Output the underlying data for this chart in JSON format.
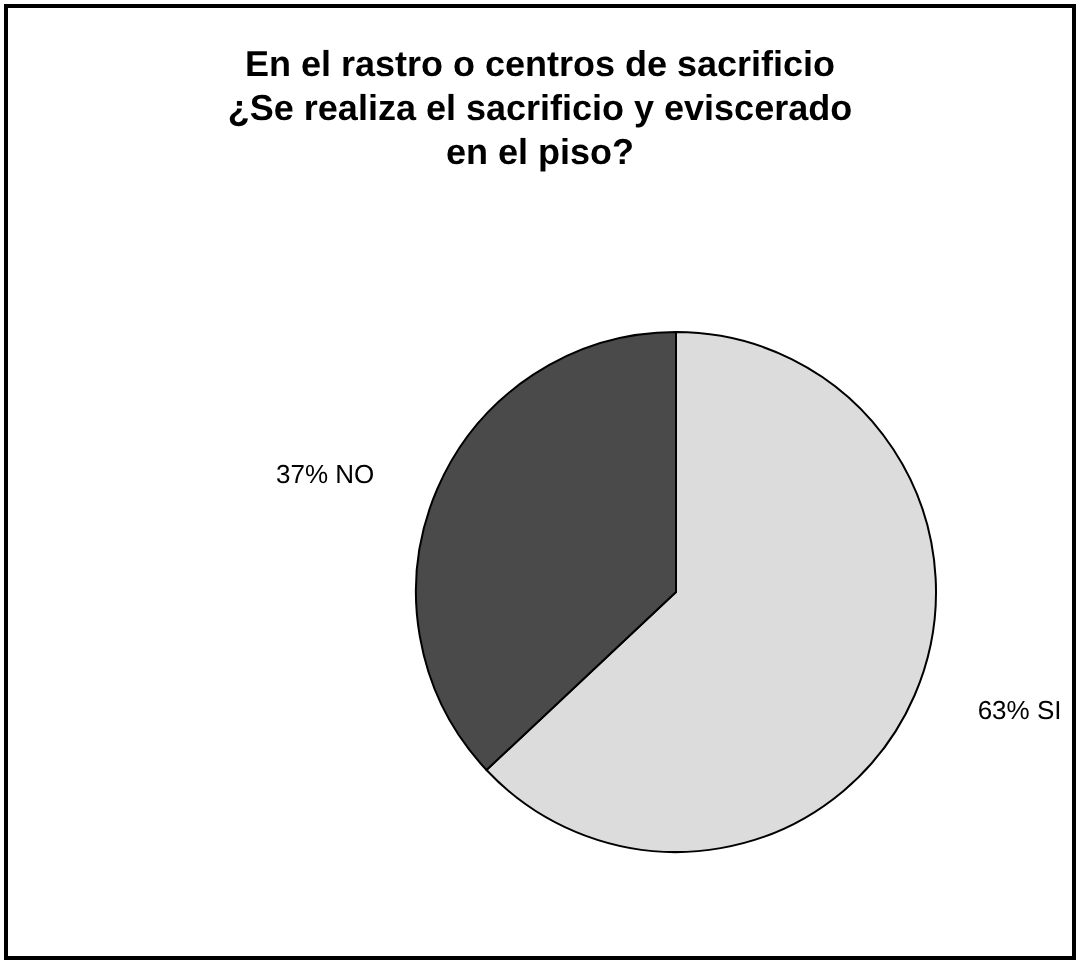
{
  "chart_data": {
    "type": "pie",
    "title": "En el rastro o centros de sacrificio\n¿Se realiza el sacrificio y eviscerado\nen el piso?",
    "categories": [
      "SI",
      "NO"
    ],
    "values": [
      63,
      37
    ],
    "colors": [
      "#dcdcdc",
      "#4a4a4a"
    ],
    "value_labels": [
      "63%",
      "37%"
    ],
    "legend": false
  }
}
